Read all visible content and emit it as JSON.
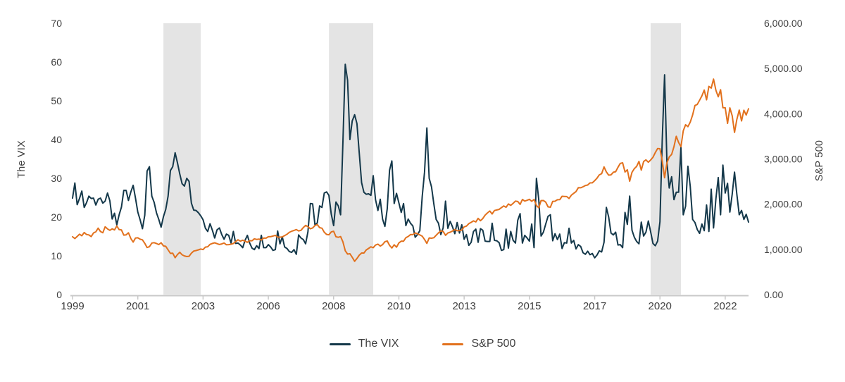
{
  "chart_data": {
    "type": "line",
    "title": "",
    "frequency": "monthly",
    "x_start": "1999-01",
    "x_end": "2023-03",
    "x_tick_indices": [
      0,
      28,
      56,
      84,
      112,
      140,
      168,
      196,
      224,
      252,
      280
    ],
    "x_tick_labels": [
      "1999",
      "2001",
      "2003",
      "2006",
      "2008",
      "2010",
      "2013",
      "2015",
      "2017",
      "2020",
      "2022"
    ],
    "left_axis": {
      "label": "The VIX",
      "min": 0,
      "max": 70,
      "tick_values": [
        0,
        10,
        20,
        30,
        40,
        50,
        60,
        70
      ],
      "tick_labels": [
        "0",
        "10",
        "20",
        "30",
        "40",
        "50",
        "60",
        "70"
      ]
    },
    "right_axis": {
      "label": "S&P 500",
      "min": 0,
      "max": 6000,
      "tick_values": [
        0,
        1000,
        2000,
        3000,
        4000,
        5000,
        6000
      ],
      "tick_labels": [
        "0.00",
        "1,000.00",
        "2,000.00",
        "3,000.00",
        "4,000.00",
        "5,000.00",
        "6,000.00"
      ]
    },
    "grid": "off",
    "legend_position": "bottom-center",
    "colors": {
      "vix_line": "#14384a",
      "sp500_line": "#e2711d",
      "shaded_band": "#e4e4e4",
      "axis_line": "#c8c8c8",
      "tick_text": "#3f3f3f"
    },
    "shaded_regions": [
      {
        "start_index": 39,
        "end_index": 55
      },
      {
        "start_index": 110,
        "end_index": 129
      },
      {
        "start_index": 248,
        "end_index": 261
      }
    ],
    "series": [
      {
        "name": "The VIX",
        "axis": "left",
        "color": "#14384a",
        "values": [
          24.9,
          28.8,
          23.2,
          24.8,
          26.7,
          22.5,
          23.7,
          25.4,
          24.8,
          24.9,
          23.1,
          24.6,
          24.9,
          23.6,
          24.1,
          26.2,
          24.2,
          19.5,
          21.0,
          18.0,
          20.6,
          22.6,
          26.9,
          26.9,
          24.3,
          26.5,
          28.2,
          24.9,
          21.3,
          19.3,
          17.0,
          20.5,
          31.9,
          33.0,
          25.4,
          23.8,
          21.1,
          19.4,
          17.4,
          20.1,
          22.0,
          25.4,
          32.0,
          33.0,
          36.6,
          34.0,
          31.1,
          28.6,
          28.0,
          30.0,
          29.2,
          23.6,
          21.8,
          21.7,
          21.1,
          20.3,
          19.3,
          17.1,
          16.3,
          18.3,
          16.6,
          14.6,
          16.7,
          17.2,
          15.5,
          14.3,
          15.6,
          15.3,
          13.3,
          16.3,
          13.2,
          13.3,
          12.8,
          12.1,
          14.0,
          15.3,
          13.3,
          12.0,
          11.6,
          12.6,
          11.9,
          15.3,
          12.1,
          12.1,
          12.9,
          12.3,
          11.4,
          11.6,
          16.4,
          13.1,
          14.9,
          12.3,
          11.9,
          11.1,
          10.9,
          11.6,
          10.4,
          15.4,
          14.6,
          14.2,
          13.1,
          16.2,
          23.5,
          23.4,
          18.0,
          18.5,
          22.9,
          22.5,
          26.2,
          26.5,
          25.6,
          20.8,
          17.8,
          23.9,
          22.9,
          20.6,
          39.4,
          59.4,
          55.3,
          40.0,
          44.8,
          46.4,
          44.1,
          36.5,
          28.9,
          26.4,
          25.9,
          26.0,
          25.6,
          30.7,
          24.5,
          21.7,
          24.6,
          19.5,
          17.6,
          22.1,
          32.1,
          34.5,
          23.5,
          26.1,
          23.7,
          21.2,
          23.5,
          17.8,
          19.5,
          18.4,
          17.7,
          14.8,
          15.5,
          16.5,
          25.3,
          31.6,
          43.0,
          30.0,
          27.8,
          23.4,
          19.4,
          18.4,
          15.5,
          17.2,
          24.1,
          17.1,
          18.9,
          17.5,
          15.7,
          18.6,
          15.9,
          18.0,
          14.3,
          15.5,
          12.7,
          13.5,
          16.3,
          16.9,
          13.5,
          17.0,
          16.6,
          13.8,
          13.7,
          13.7,
          18.4,
          14.0,
          13.9,
          13.4,
          11.4,
          11.6,
          16.9,
          12.0,
          16.3,
          14.0,
          13.3,
          19.2,
          20.9,
          13.3,
          15.3,
          14.6,
          13.8,
          18.2,
          12.1,
          30.0,
          24.5,
          15.1,
          16.1,
          18.2,
          20.2,
          20.6,
          13.9,
          15.7,
          14.2,
          15.6,
          11.9,
          13.4,
          13.3,
          17.1,
          13.3,
          14.0,
          11.8,
          12.9,
          12.4,
          10.8,
          10.4,
          11.2,
          10.3,
          10.6,
          9.5,
          10.2,
          11.3,
          11.0,
          13.5,
          22.5,
          20.0,
          15.9,
          15.4,
          16.1,
          12.8,
          12.9,
          12.1,
          21.2,
          18.1,
          25.4,
          16.6,
          14.8,
          13.7,
          13.1,
          18.7,
          15.1,
          16.1,
          19.0,
          16.2,
          13.2,
          12.6,
          13.8,
          18.8,
          40.1,
          56.7,
          34.2,
          27.5,
          30.4,
          24.5,
          26.4,
          26.4,
          38.0,
          20.6,
          22.8,
          33.1,
          28.0,
          19.4,
          18.6,
          16.8,
          15.8,
          18.2,
          16.5,
          23.1,
          16.3,
          27.2,
          17.2,
          24.8,
          30.2,
          20.6,
          33.4,
          26.2,
          28.7,
          21.3,
          25.9,
          31.6,
          25.9,
          20.6,
          21.7,
          19.4,
          20.7,
          18.7
        ]
      },
      {
        "name": "S&P 500",
        "axis": "right",
        "color": "#e2711d",
        "values": [
          1279.6,
          1238.3,
          1286.4,
          1335.2,
          1301.8,
          1372.7,
          1328.7,
          1320.4,
          1282.7,
          1362.9,
          1388.9,
          1469.3,
          1394.5,
          1366.4,
          1498.6,
          1452.4,
          1420.6,
          1454.6,
          1430.8,
          1517.7,
          1436.5,
          1429.4,
          1315.0,
          1320.3,
          1366.0,
          1239.9,
          1160.3,
          1249.5,
          1255.8,
          1224.4,
          1211.2,
          1133.6,
          1040.9,
          1059.8,
          1139.5,
          1148.1,
          1130.2,
          1106.7,
          1147.4,
          1076.9,
          1067.1,
          989.8,
          911.6,
          916.1,
          815.3,
          885.8,
          936.3,
          879.8,
          855.7,
          841.2,
          848.2,
          916.9,
          963.6,
          974.5,
          990.3,
          1008.0,
          996.0,
          1050.7,
          1058.2,
          1111.9,
          1131.1,
          1144.9,
          1126.2,
          1107.3,
          1120.7,
          1140.8,
          1101.7,
          1104.2,
          1114.6,
          1130.2,
          1173.8,
          1211.9,
          1181.3,
          1203.6,
          1180.6,
          1156.9,
          1191.5,
          1191.3,
          1234.2,
          1220.3,
          1228.8,
          1207.0,
          1249.5,
          1248.3,
          1280.1,
          1280.7,
          1294.9,
          1310.6,
          1270.1,
          1270.2,
          1276.7,
          1303.8,
          1335.9,
          1377.9,
          1400.6,
          1418.3,
          1438.2,
          1406.8,
          1420.9,
          1482.4,
          1530.6,
          1503.4,
          1455.3,
          1474.0,
          1526.8,
          1549.4,
          1481.1,
          1468.4,
          1378.6,
          1330.6,
          1322.7,
          1385.6,
          1400.4,
          1280.0,
          1267.4,
          1282.8,
          1166.4,
          968.8,
          896.2,
          903.3,
          825.9,
          735.1,
          797.9,
          872.8,
          919.1,
          919.3,
          987.5,
          1020.6,
          1057.1,
          1036.2,
          1095.6,
          1115.1,
          1073.9,
          1104.5,
          1169.4,
          1186.7,
          1089.4,
          1030.7,
          1101.6,
          1049.3,
          1141.2,
          1183.3,
          1180.6,
          1257.6,
          1286.1,
          1327.2,
          1325.8,
          1363.6,
          1345.2,
          1320.6,
          1292.3,
          1218.9,
          1131.4,
          1253.3,
          1247.0,
          1257.6,
          1312.4,
          1365.7,
          1408.5,
          1397.9,
          1310.3,
          1362.2,
          1379.3,
          1406.6,
          1440.7,
          1412.2,
          1416.2,
          1426.2,
          1498.1,
          1514.7,
          1569.2,
          1597.6,
          1630.7,
          1606.3,
          1685.7,
          1633.0,
          1681.6,
          1756.5,
          1805.8,
          1848.4,
          1782.6,
          1859.5,
          1872.3,
          1884.0,
          1923.6,
          1960.2,
          1930.7,
          2003.4,
          1972.3,
          2018.1,
          2067.6,
          2058.9,
          1995.0,
          2104.5,
          2067.9,
          2085.5,
          2107.4,
          2063.1,
          2103.8,
          1972.2,
          1920.0,
          2079.4,
          2080.4,
          2043.9,
          1940.2,
          1932.2,
          2059.7,
          2065.3,
          2097.0,
          2098.9,
          2173.6,
          2170.9,
          2168.3,
          2126.2,
          2198.8,
          2238.8,
          2278.9,
          2363.6,
          2362.7,
          2384.2,
          2411.8,
          2423.4,
          2470.3,
          2471.7,
          2519.4,
          2575.3,
          2647.6,
          2673.6,
          2823.8,
          2713.8,
          2640.9,
          2648.1,
          2705.3,
          2718.4,
          2816.3,
          2901.5,
          2914.0,
          2711.7,
          2760.2,
          2506.9,
          2704.1,
          2784.5,
          2834.4,
          2945.8,
          2752.1,
          2941.8,
          2980.4,
          2926.5,
          2976.7,
          3037.6,
          3141.0,
          3230.8,
          3225.5,
          2954.2,
          2584.6,
          2912.4,
          3044.3,
          3100.3,
          3271.1,
          3500.3,
          3363.0,
          3270.0,
          3621.6,
          3756.1,
          3714.2,
          3811.2,
          3972.9,
          4181.2,
          4204.1,
          4297.5,
          4395.3,
          4522.7,
          4307.5,
          4605.4,
          4567.0,
          4766.2,
          4515.6,
          4373.9,
          4530.4,
          4131.9,
          4132.2,
          3785.4,
          4130.3,
          3955.0,
          3585.6,
          3872.0,
          4080.1,
          3839.5,
          4076.6,
          3970.2,
          4109.3
        ]
      }
    ]
  }
}
